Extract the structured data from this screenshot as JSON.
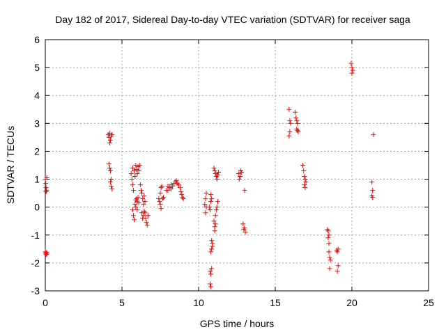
{
  "chart_data": {
    "type": "scatter",
    "title": "Day 182 of 2017, Sidereal Day-to-day VTEC variation (SDTVAR) for receiver saga",
    "xlabel": "GPS time / hours",
    "ylabel": "SDTVAR / TECUs",
    "xlim": [
      0,
      25
    ],
    "ylim": [
      -3,
      6
    ],
    "xticks": [
      0,
      5,
      10,
      15,
      20,
      25
    ],
    "yticks": [
      -3,
      -2,
      -1,
      0,
      1,
      2,
      3,
      4,
      5,
      6
    ],
    "xtick_labels": [
      "0",
      "5",
      "10",
      "15",
      "20",
      "25"
    ],
    "ytick_labels": [
      "-3",
      "-2",
      "-1",
      "0",
      "1",
      "2",
      "3",
      "4",
      "5",
      "6"
    ],
    "grid": true,
    "marker": "+",
    "color": "#ff0000",
    "series": [
      {
        "name": "SDTVAR",
        "points": [
          [
            0.0,
            1.0
          ],
          [
            0.03,
            0.85
          ],
          [
            0.05,
            0.7
          ],
          [
            0.08,
            0.6
          ],
          [
            0.1,
            1.05
          ],
          [
            0.05,
            0.55
          ],
          [
            0.0,
            -1.6
          ],
          [
            0.03,
            -1.65
          ],
          [
            0.05,
            -1.7
          ],
          [
            0.08,
            -1.62
          ],
          [
            0.1,
            -1.68
          ],
          [
            4.1,
            2.6
          ],
          [
            4.15,
            2.5
          ],
          [
            4.2,
            2.65
          ],
          [
            4.25,
            2.4
          ],
          [
            4.3,
            2.55
          ],
          [
            4.2,
            2.3
          ],
          [
            4.35,
            2.6
          ],
          [
            4.15,
            1.55
          ],
          [
            4.2,
            1.4
          ],
          [
            4.25,
            1.3
          ],
          [
            4.3,
            1.0
          ],
          [
            4.25,
            0.9
          ],
          [
            4.3,
            0.75
          ],
          [
            4.35,
            0.65
          ],
          [
            5.6,
            1.2
          ],
          [
            5.65,
            1.0
          ],
          [
            5.7,
            0.8
          ],
          [
            5.75,
            0.6
          ],
          [
            5.7,
            1.4
          ],
          [
            5.8,
            1.3
          ],
          [
            5.85,
            1.1
          ],
          [
            5.9,
            1.5
          ],
          [
            5.95,
            1.35
          ],
          [
            6.0,
            1.2
          ],
          [
            6.05,
            1.45
          ],
          [
            6.1,
            1.3
          ],
          [
            6.15,
            1.5
          ],
          [
            5.7,
            -0.1
          ],
          [
            5.75,
            -0.3
          ],
          [
            5.8,
            -0.45
          ],
          [
            5.85,
            0.1
          ],
          [
            5.9,
            0.25
          ],
          [
            5.95,
            0.3
          ],
          [
            6.0,
            0.2
          ],
          [
            6.05,
            0.35
          ],
          [
            6.1,
            0.15
          ],
          [
            5.9,
            0.0
          ],
          [
            6.0,
            -0.1
          ],
          [
            6.2,
            0.8
          ],
          [
            6.25,
            0.6
          ],
          [
            6.3,
            0.5
          ],
          [
            6.35,
            0.3
          ],
          [
            6.4,
            0.1
          ],
          [
            6.3,
            -0.2
          ],
          [
            6.35,
            -0.4
          ],
          [
            6.4,
            -0.3
          ],
          [
            6.45,
            -0.15
          ],
          [
            6.5,
            -0.2
          ],
          [
            6.55,
            -0.4
          ],
          [
            6.6,
            -0.55
          ],
          [
            6.65,
            -0.65
          ],
          [
            6.7,
            -0.3
          ],
          [
            6.5,
            0.2
          ],
          [
            6.45,
            0.4
          ],
          [
            7.4,
            0.3
          ],
          [
            7.45,
            0.2
          ],
          [
            7.5,
            0.1
          ],
          [
            7.55,
            -0.05
          ],
          [
            7.5,
            0.5
          ],
          [
            7.55,
            0.7
          ],
          [
            7.6,
            0.75
          ],
          [
            7.65,
            0.3
          ],
          [
            7.7,
            0.35
          ],
          [
            7.9,
            0.6
          ],
          [
            8.0,
            0.75
          ],
          [
            8.1,
            0.7
          ],
          [
            8.2,
            0.8
          ],
          [
            8.3,
            0.75
          ],
          [
            8.4,
            0.85
          ],
          [
            8.5,
            0.9
          ],
          [
            8.55,
            0.95
          ],
          [
            8.6,
            0.85
          ],
          [
            8.7,
            0.8
          ],
          [
            8.8,
            0.7
          ],
          [
            8.85,
            0.55
          ],
          [
            8.9,
            0.45
          ],
          [
            8.95,
            0.35
          ],
          [
            9.0,
            0.3
          ],
          [
            8.0,
            0.6
          ],
          [
            8.2,
            0.65
          ],
          [
            10.4,
            0.1
          ],
          [
            10.45,
            0.3
          ],
          [
            10.5,
            0.0
          ],
          [
            10.45,
            -0.2
          ],
          [
            10.5,
            0.5
          ],
          [
            10.7,
            0.0
          ],
          [
            10.75,
            -0.1
          ],
          [
            10.8,
            0.2
          ],
          [
            10.85,
            0.3
          ],
          [
            10.8,
            0.45
          ],
          [
            10.75,
            -2.3
          ],
          [
            10.8,
            -2.4
          ],
          [
            10.75,
            -2.75
          ],
          [
            10.8,
            -2.85
          ],
          [
            10.85,
            -2.2
          ],
          [
            10.85,
            -1.2
          ],
          [
            10.9,
            -1.3
          ],
          [
            10.85,
            -1.5
          ],
          [
            10.8,
            -1.6
          ],
          [
            10.9,
            -1.4
          ],
          [
            11.0,
            1.4
          ],
          [
            11.05,
            1.3
          ],
          [
            11.1,
            1.2
          ],
          [
            11.15,
            1.1
          ],
          [
            11.2,
            1.0
          ],
          [
            11.25,
            1.15
          ],
          [
            11.3,
            1.25
          ],
          [
            11.0,
            -0.5
          ],
          [
            11.05,
            -0.7
          ],
          [
            11.1,
            -0.3
          ],
          [
            11.15,
            -0.1
          ],
          [
            11.2,
            0.0
          ],
          [
            11.25,
            0.2
          ],
          [
            11.1,
            -0.6
          ],
          [
            11.05,
            -0.85
          ],
          [
            12.6,
            1.2
          ],
          [
            12.65,
            1.0
          ],
          [
            12.7,
            1.1
          ],
          [
            12.75,
            1.3
          ],
          [
            12.8,
            1.25
          ],
          [
            12.9,
            -0.6
          ],
          [
            12.95,
            -0.8
          ],
          [
            13.0,
            -0.75
          ],
          [
            13.05,
            -0.9
          ],
          [
            13.0,
            0.6
          ],
          [
            15.9,
            3.5
          ],
          [
            15.95,
            3.1
          ],
          [
            16.0,
            3.0
          ],
          [
            15.95,
            2.7
          ],
          [
            15.9,
            2.55
          ],
          [
            16.3,
            3.4
          ],
          [
            16.35,
            3.2
          ],
          [
            16.4,
            3.1
          ],
          [
            16.45,
            3.0
          ],
          [
            16.4,
            2.8
          ],
          [
            16.45,
            2.75
          ],
          [
            16.5,
            2.7
          ],
          [
            16.8,
            1.5
          ],
          [
            16.85,
            1.3
          ],
          [
            16.9,
            1.1
          ],
          [
            16.95,
            1.0
          ],
          [
            16.9,
            0.8
          ],
          [
            16.95,
            0.7
          ],
          [
            17.0,
            0.9
          ],
          [
            18.4,
            -0.8
          ],
          [
            18.45,
            -0.85
          ],
          [
            18.5,
            -1.0
          ],
          [
            18.45,
            -1.1
          ],
          [
            18.5,
            -1.3
          ],
          [
            18.5,
            -1.6
          ],
          [
            18.55,
            -1.8
          ],
          [
            18.6,
            -1.9
          ],
          [
            18.55,
            -2.2
          ],
          [
            19.0,
            -1.55
          ],
          [
            19.05,
            -1.6
          ],
          [
            19.1,
            -2.1
          ],
          [
            19.05,
            -2.3
          ],
          [
            19.1,
            -1.5
          ],
          [
            19.95,
            5.15
          ],
          [
            20.0,
            5.0
          ],
          [
            20.05,
            4.9
          ],
          [
            20.0,
            4.8
          ],
          [
            21.3,
            0.9
          ],
          [
            21.35,
            0.6
          ],
          [
            21.3,
            0.4
          ],
          [
            21.35,
            0.35
          ],
          [
            21.4,
            2.6
          ]
        ]
      }
    ]
  }
}
